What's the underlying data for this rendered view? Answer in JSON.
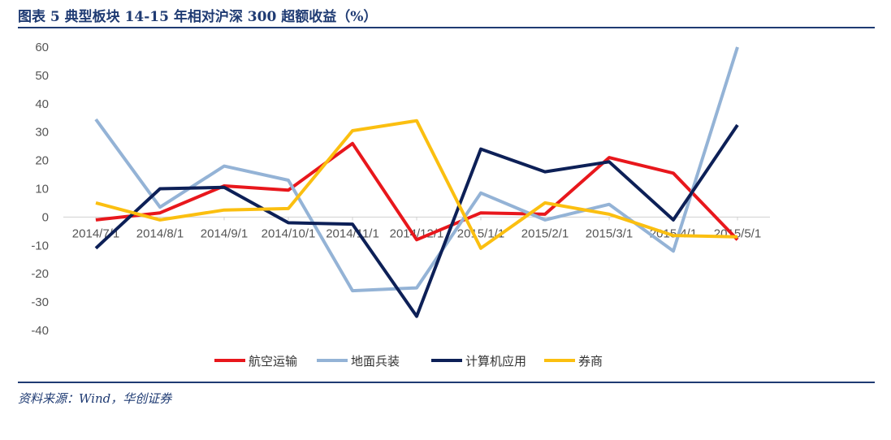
{
  "header": {
    "title": "图表 5   典型板块 14-15 年相对沪深 300 超额收益（%）"
  },
  "footer": {
    "source": "资料来源：Wind，华创证券"
  },
  "chart_data": {
    "type": "line",
    "title": "图表 5   典型板块 14-15 年相对沪深 300 超额收益（%）",
    "xlabel": "",
    "ylabel": "",
    "categories": [
      "2014/7/1",
      "2014/8/1",
      "2014/9/1",
      "2014/10/1",
      "2014/11/1",
      "2014/12/1",
      "2015/1/1",
      "2015/2/1",
      "2015/3/1",
      "2015/4/1",
      "2015/5/1"
    ],
    "yticks": [
      60,
      50,
      40,
      30,
      20,
      10,
      0,
      -10,
      -20,
      -30,
      -40
    ],
    "ylim": [
      -40,
      60
    ],
    "grid": false,
    "legend_position": "bottom",
    "series": [
      {
        "name": "航空运输",
        "color": "#e8171c",
        "values": [
          -1,
          1.5,
          11,
          9.5,
          26,
          -8,
          1.5,
          1,
          21,
          15.5,
          -8
        ]
      },
      {
        "name": "地面兵装",
        "color": "#94b3d6",
        "values": [
          34.5,
          3.5,
          18,
          13,
          -26,
          -25,
          8.5,
          -1,
          4.5,
          -12,
          60
        ]
      },
      {
        "name": "计算机应用",
        "color": "#0d2057",
        "values": [
          -11,
          10,
          10.5,
          -2,
          -2.5,
          -35,
          24,
          16,
          19.5,
          -1,
          32.5
        ]
      },
      {
        "name": "券商",
        "color": "#fbbf10",
        "values": [
          5,
          -1,
          2.5,
          3,
          30.5,
          34,
          -11,
          5,
          1,
          -6.5,
          -7
        ]
      }
    ]
  }
}
